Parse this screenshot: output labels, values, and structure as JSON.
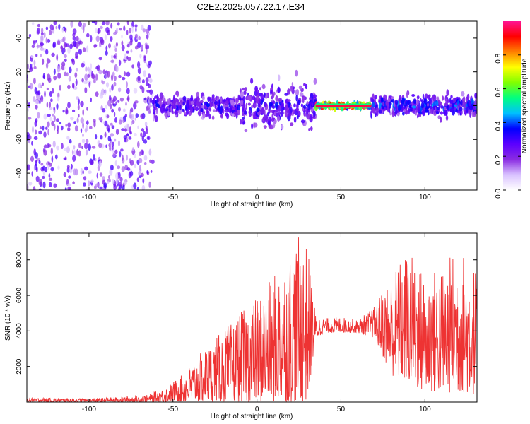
{
  "title": "C2E2.2025.057.22.17.E34",
  "chart_data": [
    {
      "type": "heatmap",
      "xlabel": "Height of straight line (km)",
      "ylabel": "Frequency (Hz)",
      "xlim": [
        -137,
        131
      ],
      "ylim": [
        -50,
        50
      ],
      "xticks": [
        -100,
        -50,
        0,
        50,
        100
      ],
      "yticks": [
        -40,
        -20,
        0,
        20,
        40
      ],
      "xtick_labels": [
        "-100",
        "-50",
        "0",
        "50",
        "100"
      ],
      "ytick_labels": [
        "-40",
        "-20",
        "0",
        "20",
        "40"
      ],
      "colorbar": {
        "label": "Normalized spectral amplitude",
        "range": [
          0,
          1
        ],
        "ticks": [
          0,
          0.2,
          0.4,
          0.6,
          0.8
        ],
        "tick_labels": [
          "0.0",
          "0.2",
          "0.4",
          "0.6",
          "0.8"
        ],
        "colormap": [
          "#ffffff",
          "#d9c2ff",
          "#8a2be2",
          "#5b00ff",
          "#0000ff",
          "#00c0ff",
          "#00ff80",
          "#80ff00",
          "#ffff00",
          "#ff8000",
          "#ff0000",
          "#ff1493"
        ]
      },
      "segments": [
        {
          "x_start": -137,
          "x_end": -62,
          "character": "broadband scattered noise, low amplitude",
          "amplitude": 0.15,
          "spread_hz": 50
        },
        {
          "x_start": -62,
          "x_end": -10,
          "character": "band centered near 0 Hz",
          "amplitude": 0.3,
          "spread_hz": 12
        },
        {
          "x_start": -10,
          "x_end": 35,
          "character": "band near 0 Hz with vertical streaks",
          "amplitude": 0.3,
          "spread_hz": 25
        },
        {
          "x_start": 35,
          "x_end": 68,
          "character": "narrow strong line at 0 Hz",
          "amplitude": 0.95,
          "spread_hz": 3
        },
        {
          "x_start": 68,
          "x_end": 131,
          "character": "band near 0 Hz",
          "amplitude": 0.35,
          "spread_hz": 12
        }
      ]
    },
    {
      "type": "area",
      "xlabel": "Height of straight line (km)",
      "ylabel": "SNR (10 * v/v)",
      "xlim": [
        -137,
        131
      ],
      "ylim": [
        0,
        9500
      ],
      "xticks": [
        -100,
        -50,
        0,
        50,
        100
      ],
      "yticks": [
        2000,
        4000,
        6000,
        8000
      ],
      "xtick_labels": [
        "-100",
        "-50",
        "0",
        "50",
        "100"
      ],
      "ytick_labels": [
        "2000",
        "4000",
        "6000",
        "8000"
      ],
      "color": "#ee3333",
      "envelope": {
        "x": [
          -137,
          -100,
          -80,
          -65,
          -55,
          -45,
          -35,
          -25,
          -15,
          -5,
          5,
          15,
          25,
          30,
          35,
          40,
          50,
          60,
          70,
          80,
          90,
          100,
          110,
          120,
          131
        ],
        "lower": [
          0,
          0,
          0,
          0,
          0,
          0,
          0,
          0,
          0,
          0,
          0,
          0,
          0,
          0,
          3500,
          3900,
          3900,
          3900,
          3600,
          1500,
          1000,
          500,
          500,
          500,
          400
        ],
        "upper": [
          250,
          200,
          300,
          400,
          800,
          1500,
          2600,
          3600,
          4500,
          5500,
          6400,
          7900,
          9300,
          8900,
          4900,
          4700,
          4800,
          4600,
          5400,
          7300,
          8600,
          7300,
          7700,
          8800,
          7600
        ]
      }
    }
  ]
}
